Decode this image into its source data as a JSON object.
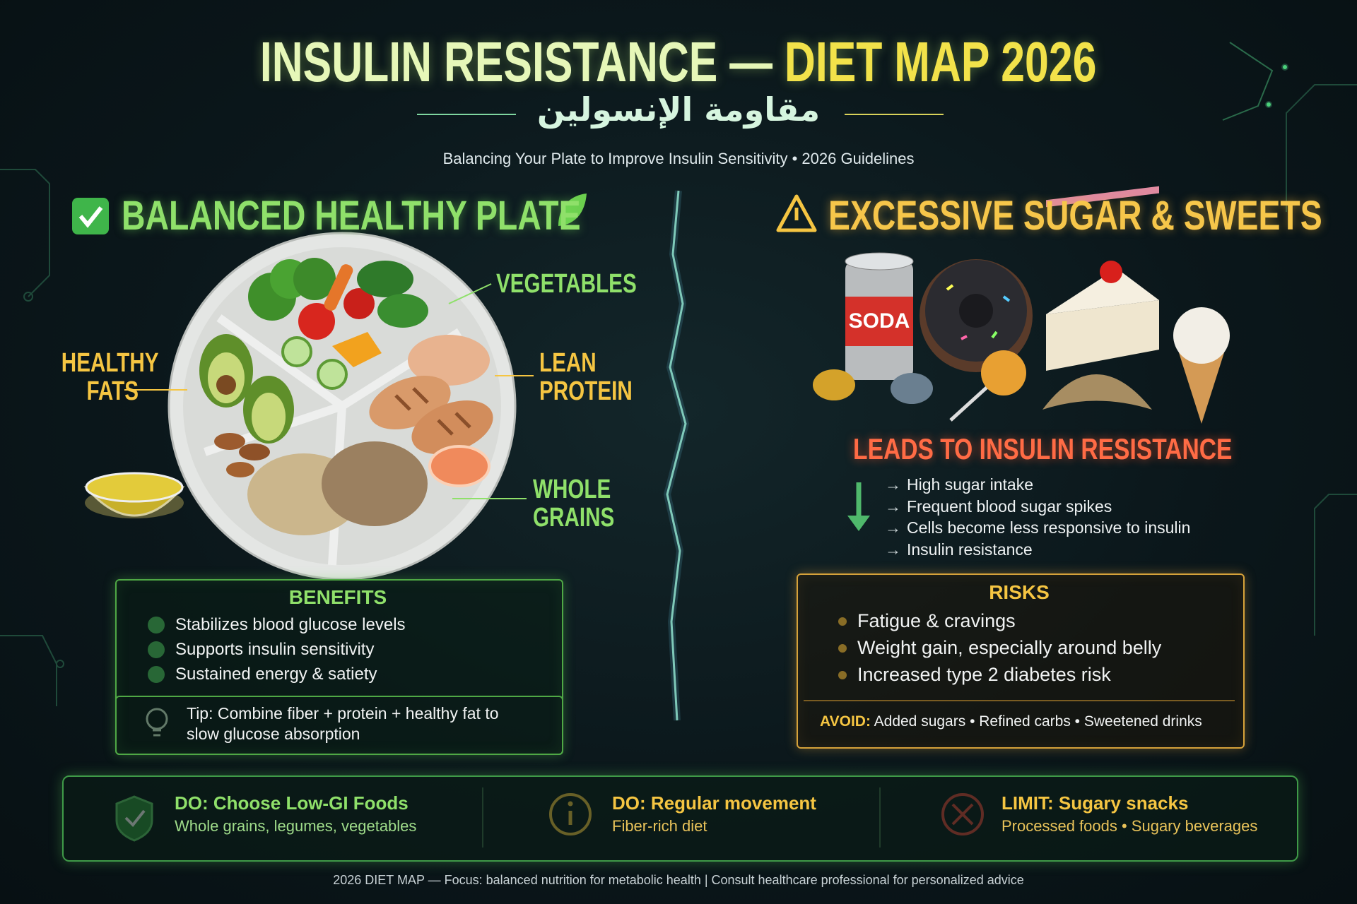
{
  "header": {
    "title_main": "INSULIN RESISTANCE —",
    "title_highlight": "DIET MAP 2026",
    "arabic_title": "مقاومة الإنسولين",
    "subtitle": "Balancing Your Plate to Improve Insulin Sensitivity • 2026 Guidelines"
  },
  "healthy_plate": {
    "heading": "BALANCED HEALTHY PLATE",
    "labels": {
      "vegetables": [
        "VEGETABLES"
      ],
      "healthy_fats": [
        "HEALTHY",
        "FATS"
      ],
      "lean_protein": [
        "LEAN",
        "PROTEIN"
      ],
      "whole_grains": [
        "WHOLE",
        "GRAINS"
      ]
    }
  },
  "sugar": {
    "heading": "EXCESSIVE SUGAR & SWEETS",
    "soda_label": "SODA",
    "consequence": "LEADS TO INSULIN RESISTANCE",
    "chain": [
      "High sugar intake",
      "Frequent blood sugar spikes",
      "Cells become less responsive to insulin",
      "Insulin resistance"
    ]
  },
  "benefits": {
    "title": "BENEFITS",
    "items": [
      "Stabilizes blood glucose levels",
      "Supports insulin sensitivity",
      "Sustained energy & satiety"
    ],
    "tip": "Tip: Combine fiber + protein + healthy fat to slow glucose absorption"
  },
  "risks": {
    "title": "RISKS",
    "items": [
      "Fatigue & cravings",
      "Weight gain, especially around belly",
      "Increased type 2 diabetes risk"
    ],
    "avoid_label": "AVOID:",
    "avoid_text": "Added sugars • Refined carbs • Sweetened drinks"
  },
  "actions": [
    {
      "title": "DO: Choose Low-GI Foods",
      "subtitle": "Whole grains, legumes, vegetables"
    },
    {
      "title": "DO: Regular movement",
      "subtitle": "Fiber-rich diet"
    },
    {
      "title": "LIMIT: Sugary snacks",
      "subtitle": "Processed foods • Sugary beverages"
    }
  ],
  "footer": "2026 DIET MAP — Focus: balanced nutrition for metabolic health | Consult healthcare professional for personalized advice"
}
